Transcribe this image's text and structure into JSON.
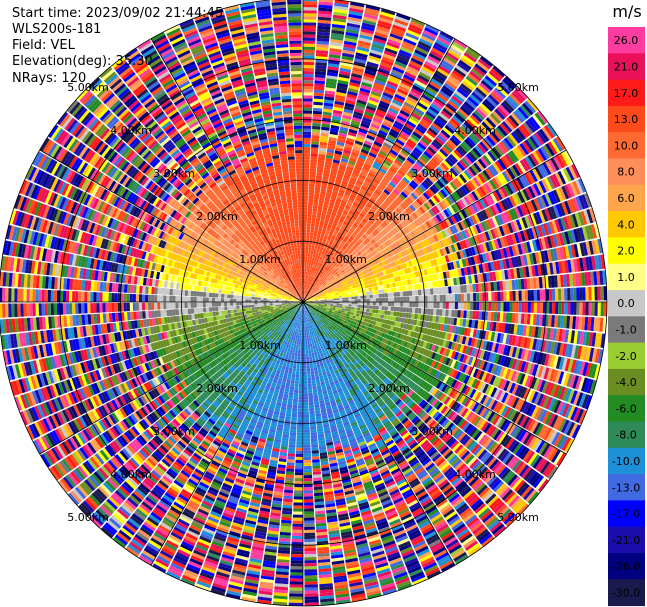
{
  "header": {
    "start_time": "Start time: 2023/09/02 21:44:45",
    "site": "WLS200s-181",
    "field": "Field: VEL",
    "elevation": "Elevation(deg): 35.30",
    "nrays": "NRays: 120"
  },
  "colorbar": {
    "unit": "m/s",
    "levels": [
      {
        "label": "26.0",
        "color": "#ff3ca0"
      },
      {
        "label": "21.0",
        "color": "#e8115a"
      },
      {
        "label": "17.0",
        "color": "#ff1a1a"
      },
      {
        "label": "13.0",
        "color": "#ff4a1a"
      },
      {
        "label": "10.0",
        "color": "#ff6a33"
      },
      {
        "label": "8.0",
        "color": "#ff8f5a"
      },
      {
        "label": "6.0",
        "color": "#ffa64d"
      },
      {
        "label": "4.0",
        "color": "#ffc800"
      },
      {
        "label": "2.0",
        "color": "#ffff00"
      },
      {
        "label": "1.0",
        "color": "#ffff88"
      },
      {
        "label": "0.0",
        "color": "#c8c8c8"
      },
      {
        "label": "-1.0",
        "color": "#7a7a7a"
      },
      {
        "label": "-2.0",
        "color": "#9acd32"
      },
      {
        "label": "-4.0",
        "color": "#6b8e23"
      },
      {
        "label": "-6.0",
        "color": "#228b22"
      },
      {
        "label": "-8.0",
        "color": "#2e8b57"
      },
      {
        "label": "-10.0",
        "color": "#1e90d8"
      },
      {
        "label": "-13.0",
        "color": "#4169e1"
      },
      {
        "label": "-17.0",
        "color": "#0000ff"
      },
      {
        "label": "-21.0",
        "color": "#1a0dab"
      },
      {
        "label": "-26.0",
        "color": "#000080"
      },
      {
        "label": "-30.0",
        "color": "#1a1a4d"
      }
    ]
  },
  "chart_data": {
    "type": "heatmap",
    "projection": "polar-ppi",
    "field": "VEL",
    "n_rays": 120,
    "max_range_km": 5.0,
    "range_ring_labels": [
      "1.00km",
      "2.00km",
      "3.00km",
      "4.00km",
      "5.00km"
    ],
    "ring_label_azimuths_deg": [
      45,
      135,
      225,
      315
    ],
    "pattern": {
      "description_free": true,
      "toward_north_velocity_ms": 15,
      "toward_south_velocity_ms": -10,
      "noise_begins_km": 2.6
    }
  }
}
